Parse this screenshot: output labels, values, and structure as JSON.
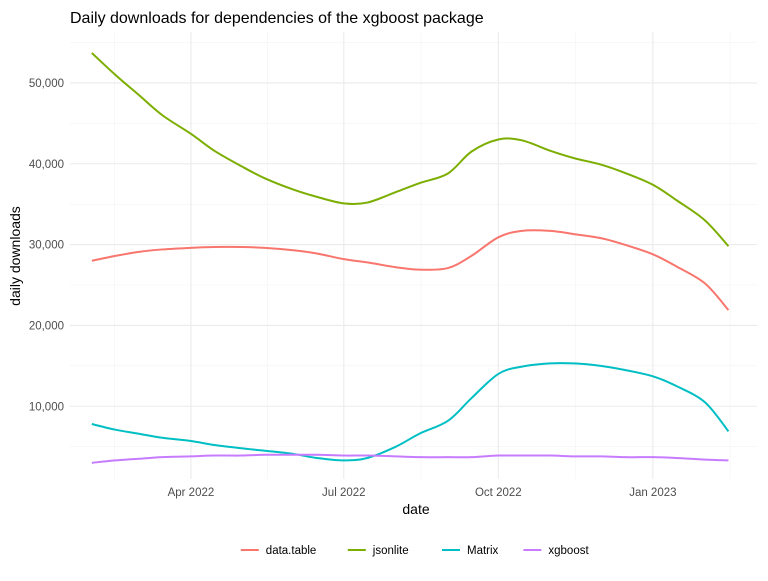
{
  "chart_data": {
    "type": "line",
    "title": "Daily downloads for dependencies of the xgboost package",
    "xlabel": "date",
    "ylabel": "daily downloads",
    "x_ticks": [
      {
        "label": "Apr 2022",
        "date": "2022-04-01"
      },
      {
        "label": "Jul 2022",
        "date": "2022-07-01"
      },
      {
        "label": "Oct 2022",
        "date": "2022-10-01"
      },
      {
        "label": "Jan 2023",
        "date": "2023-01-01"
      }
    ],
    "y_ticks": [
      {
        "label": "10,000",
        "value": 10000
      },
      {
        "label": "20,000",
        "value": 20000
      },
      {
        "label": "30,000",
        "value": 30000
      },
      {
        "label": "40,000",
        "value": 40000
      },
      {
        "label": "50,000",
        "value": 50000
      }
    ],
    "xlim": [
      "2022-01-19",
      "2023-03-04"
    ],
    "ylim": [
      1000,
      56300
    ],
    "grid": true,
    "legend_position": "bottom",
    "x": [
      "2022-02-01",
      "2022-02-15",
      "2022-03-01",
      "2022-03-15",
      "2022-04-01",
      "2022-04-15",
      "2022-05-01",
      "2022-05-15",
      "2022-06-01",
      "2022-06-15",
      "2022-07-01",
      "2022-07-15",
      "2022-08-01",
      "2022-08-15",
      "2022-09-01",
      "2022-09-15",
      "2022-10-01",
      "2022-10-15",
      "2022-11-01",
      "2022-11-15",
      "2022-12-01",
      "2022-12-15",
      "2023-01-01",
      "2023-01-15",
      "2023-02-01",
      "2023-02-15"
    ],
    "series": [
      {
        "name": "data.table",
        "color": "#F8766D",
        "values": [
          28000,
          28600,
          29100,
          29400,
          29600,
          29700,
          29700,
          29600,
          29300,
          28900,
          28200,
          27800,
          27200,
          26900,
          27100,
          28600,
          30900,
          31700,
          31700,
          31300,
          30800,
          30000,
          28800,
          27300,
          25200,
          21900
        ]
      },
      {
        "name": "jsonlite",
        "color": "#7CAE00",
        "values": [
          53700,
          51000,
          48500,
          46000,
          43700,
          41600,
          39700,
          38200,
          36800,
          35900,
          35100,
          35200,
          36500,
          37600,
          38800,
          41500,
          43000,
          42900,
          41600,
          40700,
          39900,
          38900,
          37400,
          35500,
          33000,
          29800
        ]
      },
      {
        "name": "Matrix",
        "color": "#00BFC4",
        "values": [
          7800,
          7100,
          6600,
          6100,
          5700,
          5200,
          4800,
          4500,
          4100,
          3600,
          3300,
          3600,
          5000,
          6600,
          8200,
          11000,
          14000,
          14900,
          15300,
          15300,
          15000,
          14500,
          13700,
          12500,
          10500,
          6900
        ]
      },
      {
        "name": "xgboost",
        "color": "#C77CFF",
        "values": [
          3000,
          3300,
          3500,
          3700,
          3800,
          3900,
          3900,
          4000,
          4000,
          4000,
          3900,
          3900,
          3800,
          3700,
          3700,
          3700,
          3900,
          3900,
          3900,
          3800,
          3800,
          3700,
          3700,
          3600,
          3400,
          3300
        ]
      }
    ]
  }
}
